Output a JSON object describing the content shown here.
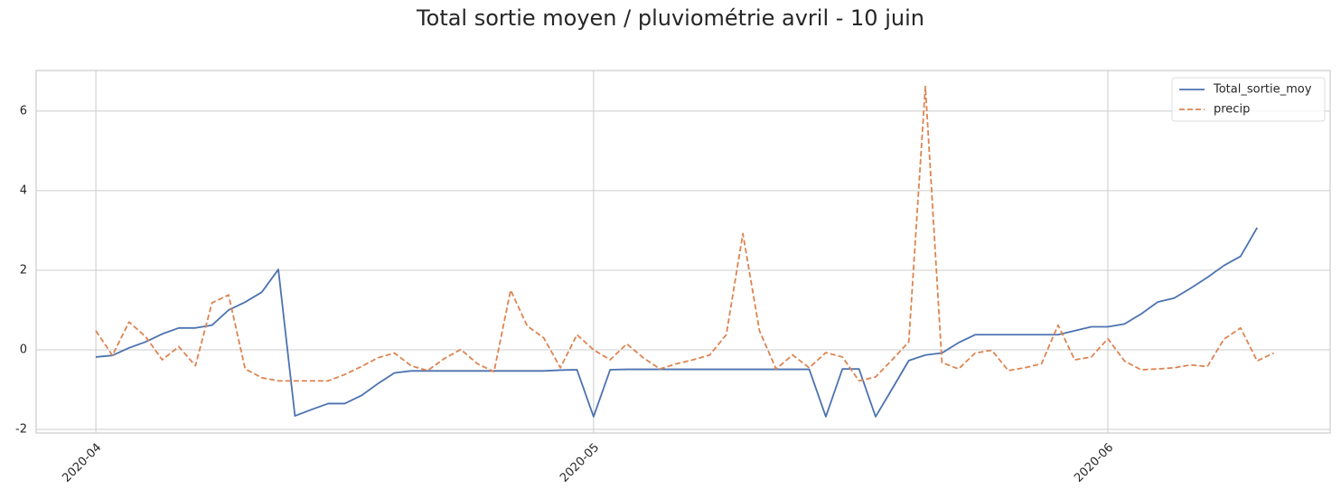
{
  "chart_data": {
    "type": "line",
    "title": "Total sortie moyen  / pluviométrie avril - 10 juin",
    "x": [
      0,
      1,
      2,
      3,
      4,
      5,
      6,
      7,
      8,
      9,
      10,
      11,
      12,
      13,
      14,
      15,
      16,
      17,
      18,
      19,
      20,
      21,
      22,
      23,
      24,
      25,
      26,
      27,
      28,
      29,
      30,
      31,
      32,
      33,
      34,
      35,
      36,
      37,
      38,
      39,
      40,
      41,
      42,
      43,
      44,
      45,
      46,
      47,
      48,
      49,
      50,
      51,
      52,
      53,
      54,
      55,
      56,
      57,
      58,
      59,
      60,
      61,
      62,
      63,
      64,
      65,
      66,
      67,
      68,
      69,
      70,
      71
    ],
    "series": [
      {
        "name": "Total_sortie_moy",
        "color": "#4c72b0",
        "dash": "solid",
        "values": [
          -0.18,
          -0.14,
          0.05,
          0.2,
          0.4,
          0.55,
          0.55,
          0.62,
          1.0,
          1.2,
          1.45,
          2.02,
          -1.66,
          -1.5,
          -1.35,
          -1.35,
          -1.15,
          -0.85,
          -0.58,
          -0.53,
          -0.53,
          -0.53,
          -0.53,
          -0.53,
          -0.53,
          -0.53,
          -0.53,
          -0.53,
          -0.51,
          -0.5,
          -1.68,
          -0.5,
          -0.49,
          -0.49,
          -0.49,
          -0.49,
          -0.49,
          -0.49,
          -0.49,
          -0.49,
          -0.49,
          -0.49,
          -0.49,
          -0.49,
          -1.68,
          -0.48,
          -0.48,
          -1.68,
          -0.98,
          -0.27,
          -0.13,
          -0.08,
          0.18,
          0.38,
          0.38,
          0.38,
          0.38,
          0.38,
          0.38,
          0.48,
          0.58,
          0.58,
          0.65,
          0.9,
          1.2,
          1.3,
          1.55,
          1.82,
          2.12,
          2.35,
          3.07,
          null
        ]
      },
      {
        "name": "precip",
        "color": "#dd8452",
        "dash": "dashed",
        "values": [
          0.48,
          -0.14,
          0.7,
          0.33,
          -0.25,
          0.08,
          -0.4,
          1.18,
          1.38,
          -0.48,
          -0.7,
          -0.78,
          -0.78,
          -0.78,
          -0.78,
          -0.62,
          -0.42,
          -0.2,
          -0.08,
          -0.4,
          -0.52,
          -0.22,
          0.01,
          -0.35,
          -0.55,
          1.5,
          0.6,
          0.3,
          -0.45,
          0.38,
          0,
          -0.25,
          0.15,
          -0.2,
          -0.48,
          -0.35,
          -0.25,
          -0.13,
          0.38,
          2.92,
          0.48,
          -0.48,
          -0.13,
          -0.45,
          -0.07,
          -0.18,
          -0.78,
          -0.68,
          -0.25,
          0.2,
          6.62,
          -0.32,
          -0.48,
          -0.08,
          -0.01,
          -0.52,
          -0.45,
          -0.35,
          0.62,
          -0.25,
          -0.18,
          0.28,
          -0.28,
          -0.5,
          -0.48,
          -0.45,
          -0.38,
          -0.42,
          0.27,
          0.55,
          -0.28,
          -0.08
        ]
      }
    ],
    "xlim": [
      -3.6,
      74.4
    ],
    "xticks": [
      {
        "value": 0,
        "label": "2020-04"
      },
      {
        "value": 30,
        "label": "2020-05"
      },
      {
        "value": 61,
        "label": "2020-06"
      }
    ],
    "ylim": [
      -2.09,
      7.02
    ],
    "yticks": [
      -2,
      0,
      2,
      4,
      6
    ],
    "grid": true,
    "legend": "upper right"
  }
}
